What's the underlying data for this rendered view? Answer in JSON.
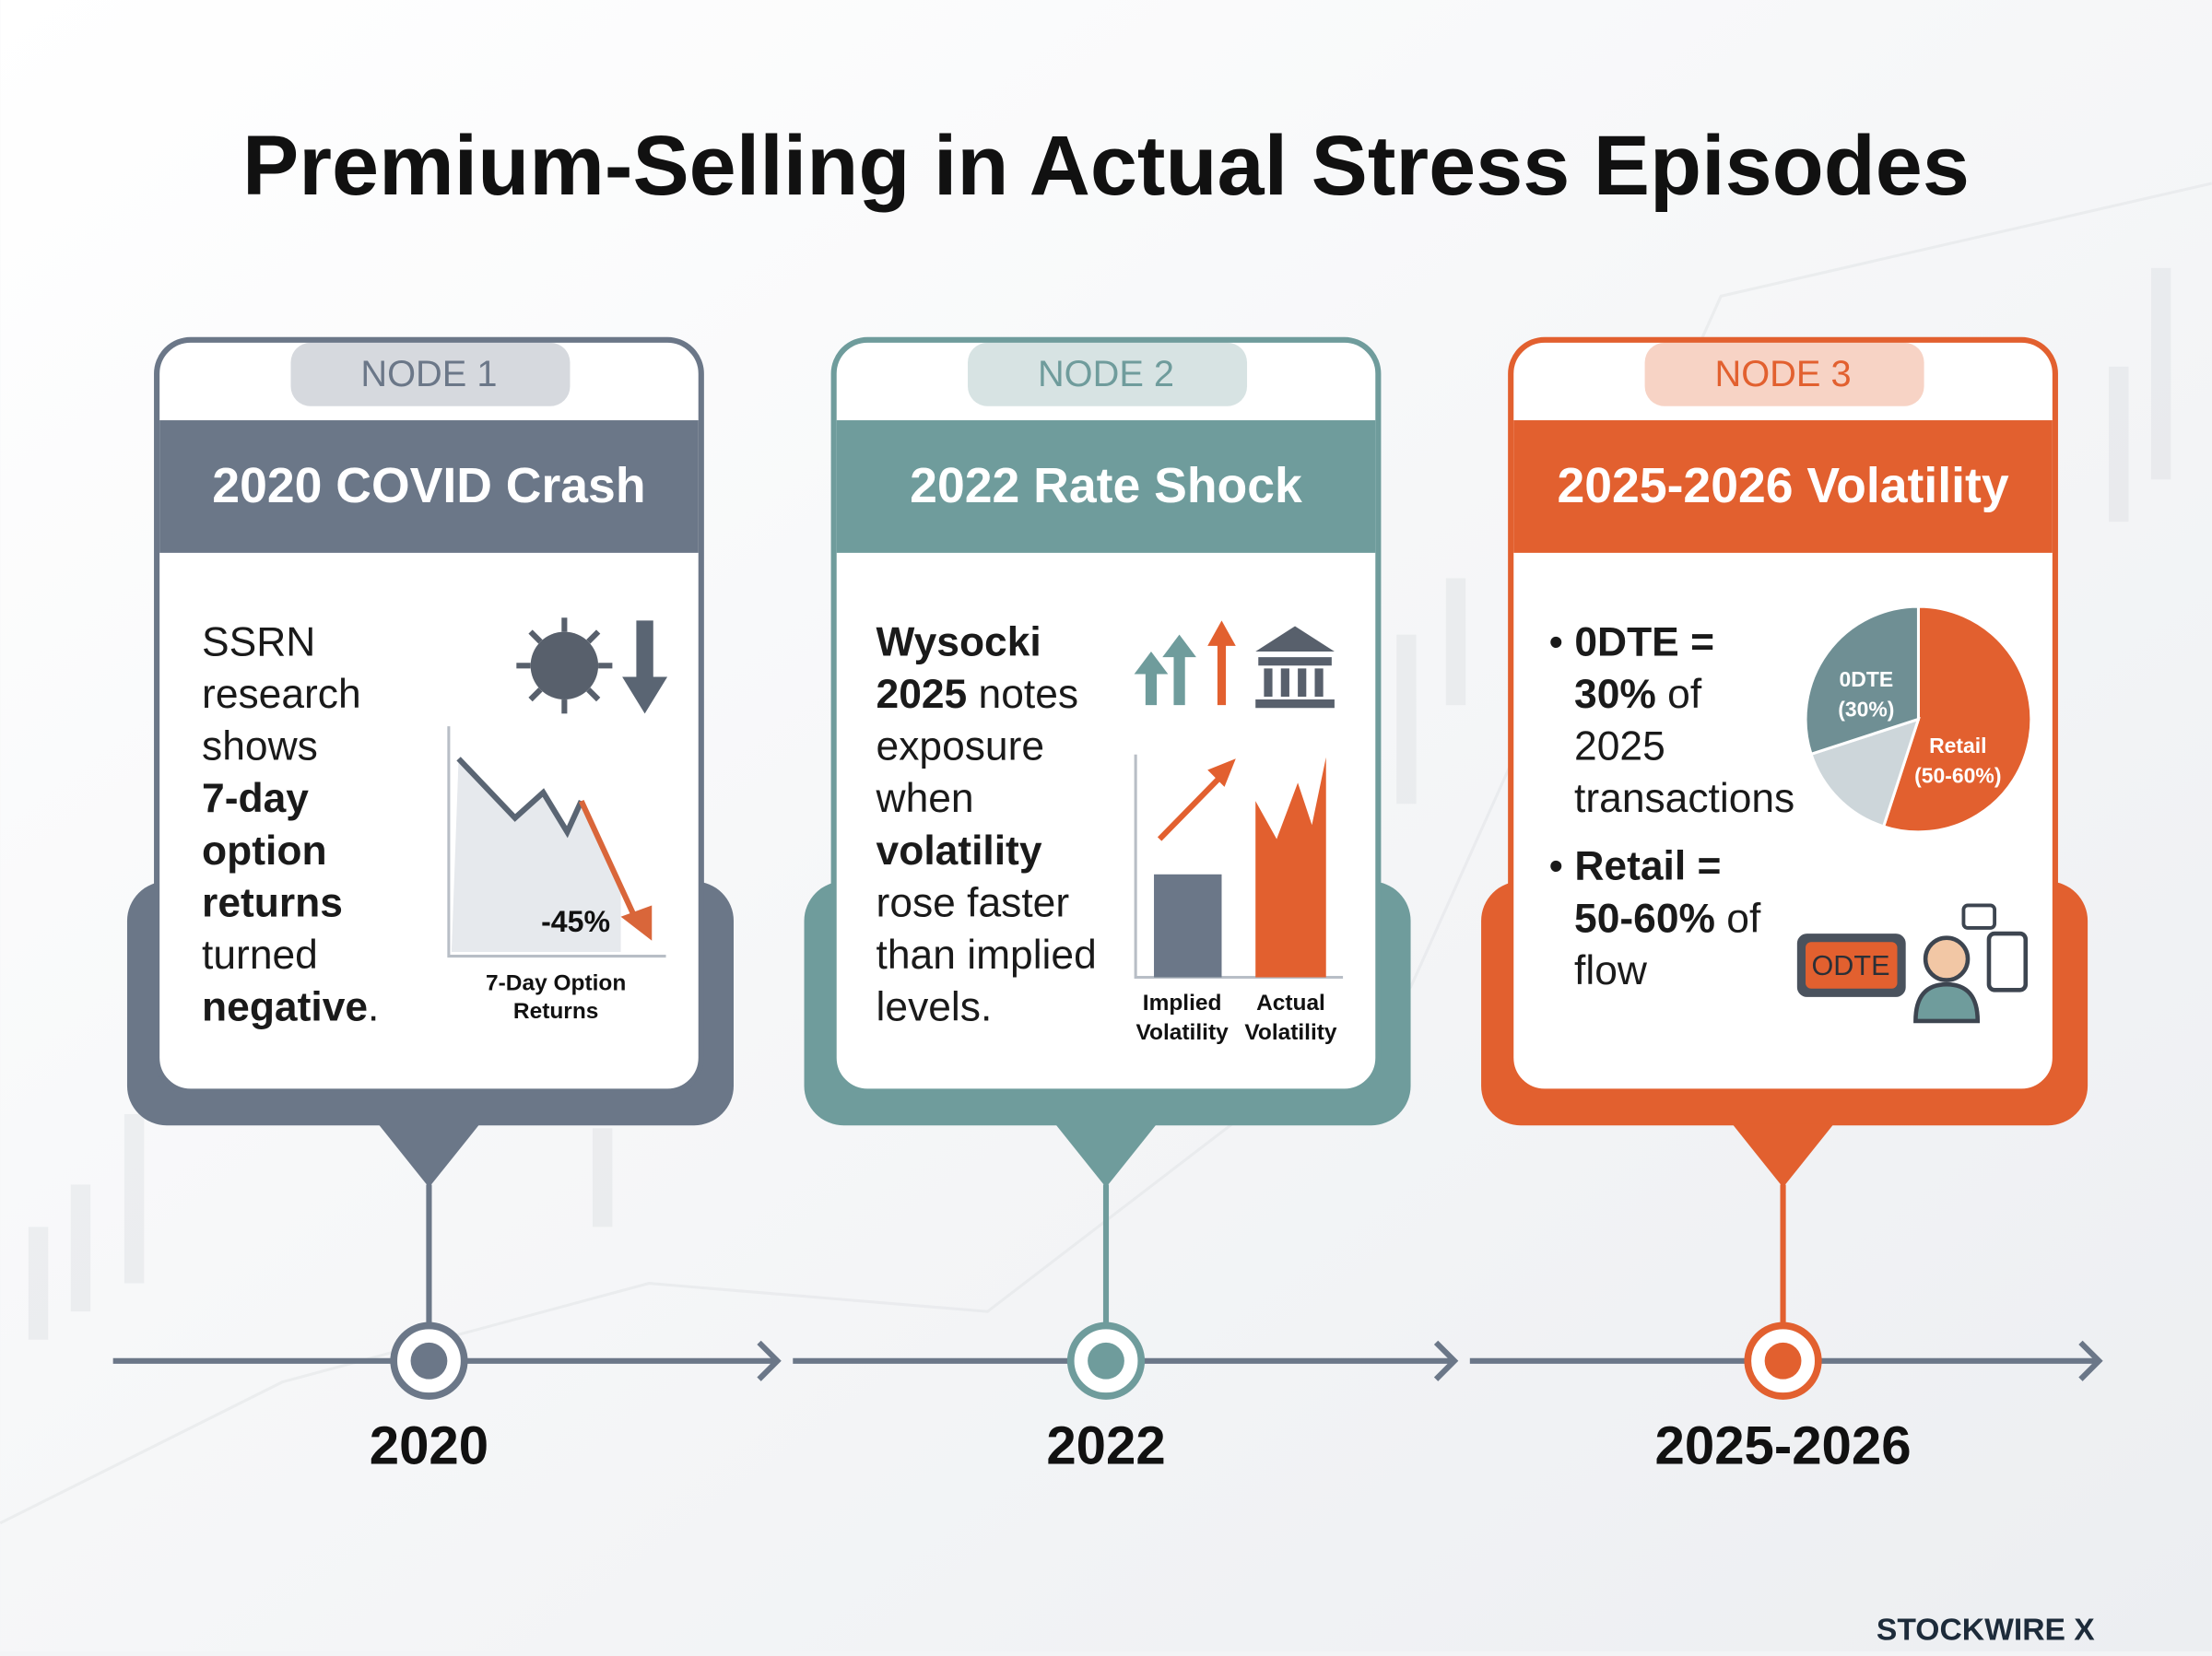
{
  "header": {
    "title": "Premium-Selling in Actual Stress Episodes"
  },
  "nodes": [
    {
      "tab": "NODE 1",
      "title": "2020 COVID Crash",
      "color": "#6b7788",
      "year": "2020",
      "body": [
        [
          {
            "text": "SSRN"
          }
        ],
        [
          {
            "text": "research"
          }
        ],
        [
          {
            "text": "shows"
          }
        ],
        [
          {
            "text": "7-day",
            "bold": true
          }
        ],
        [
          {
            "text": "option",
            "bold": true
          }
        ],
        [
          {
            "text": "returns",
            "bold": true
          }
        ],
        [
          {
            "text": "turned"
          }
        ],
        [
          {
            "text": "negative",
            "bold": true
          },
          {
            "text": "."
          }
        ]
      ],
      "graphic": {
        "change": "-45%",
        "caption": [
          "7-Day Option",
          "Returns"
        ]
      }
    },
    {
      "tab": "NODE 2",
      "title": "2022 Rate Shock",
      "color": "#6f9c9c",
      "year": "2022",
      "body": [
        [
          {
            "text": "Wysocki",
            "bold": true
          }
        ],
        [
          {
            "text": "2025",
            "bold": true
          },
          {
            "text": " notes"
          }
        ],
        [
          {
            "text": "exposure"
          }
        ],
        [
          {
            "text": "when"
          }
        ],
        [
          {
            "text": "volatility",
            "bold": true
          }
        ],
        [
          {
            "text": "rose faster"
          }
        ],
        [
          {
            "text": "than implied"
          }
        ],
        [
          {
            "text": "levels."
          }
        ]
      ],
      "graphic": {
        "bars": [
          [
            "Implied",
            "Volatility"
          ],
          [
            "Actual",
            "Volatility"
          ]
        ]
      }
    },
    {
      "tab": "NODE 3",
      "title": "2025-2026 Volatility",
      "color": "#e2602f",
      "year": "2025-2026",
      "body": [
        [
          {
            "text": "•"
          },
          {
            "text": " 0DTE =",
            "bold": true
          }
        ],
        [
          {
            "text": "30%",
            "bold": true
          },
          {
            "text": " of"
          }
        ],
        [
          {
            "text": "2025"
          }
        ],
        [
          {
            "text": "transactions"
          }
        ],
        [
          {
            "text": "•"
          },
          {
            "text": " Retail =",
            "bold": true
          }
        ],
        [
          {
            "text": "50-60%",
            "bold": true
          },
          {
            "text": " of"
          }
        ],
        [
          {
            "text": "flow"
          }
        ]
      ],
      "graphic": {
        "pie": [
          {
            "name": "Retail",
            "value": 55,
            "value_label": "(50-60%)",
            "color": "#e2602f"
          },
          {
            "name": null,
            "value": 15,
            "color": "#cdd6da"
          },
          {
            "name": "0DTE",
            "value": 30,
            "value_label": "(30%)",
            "color": "#6f8f94"
          }
        ],
        "sign": "ODTE"
      }
    }
  ],
  "brand": "STOCKWIRE X"
}
